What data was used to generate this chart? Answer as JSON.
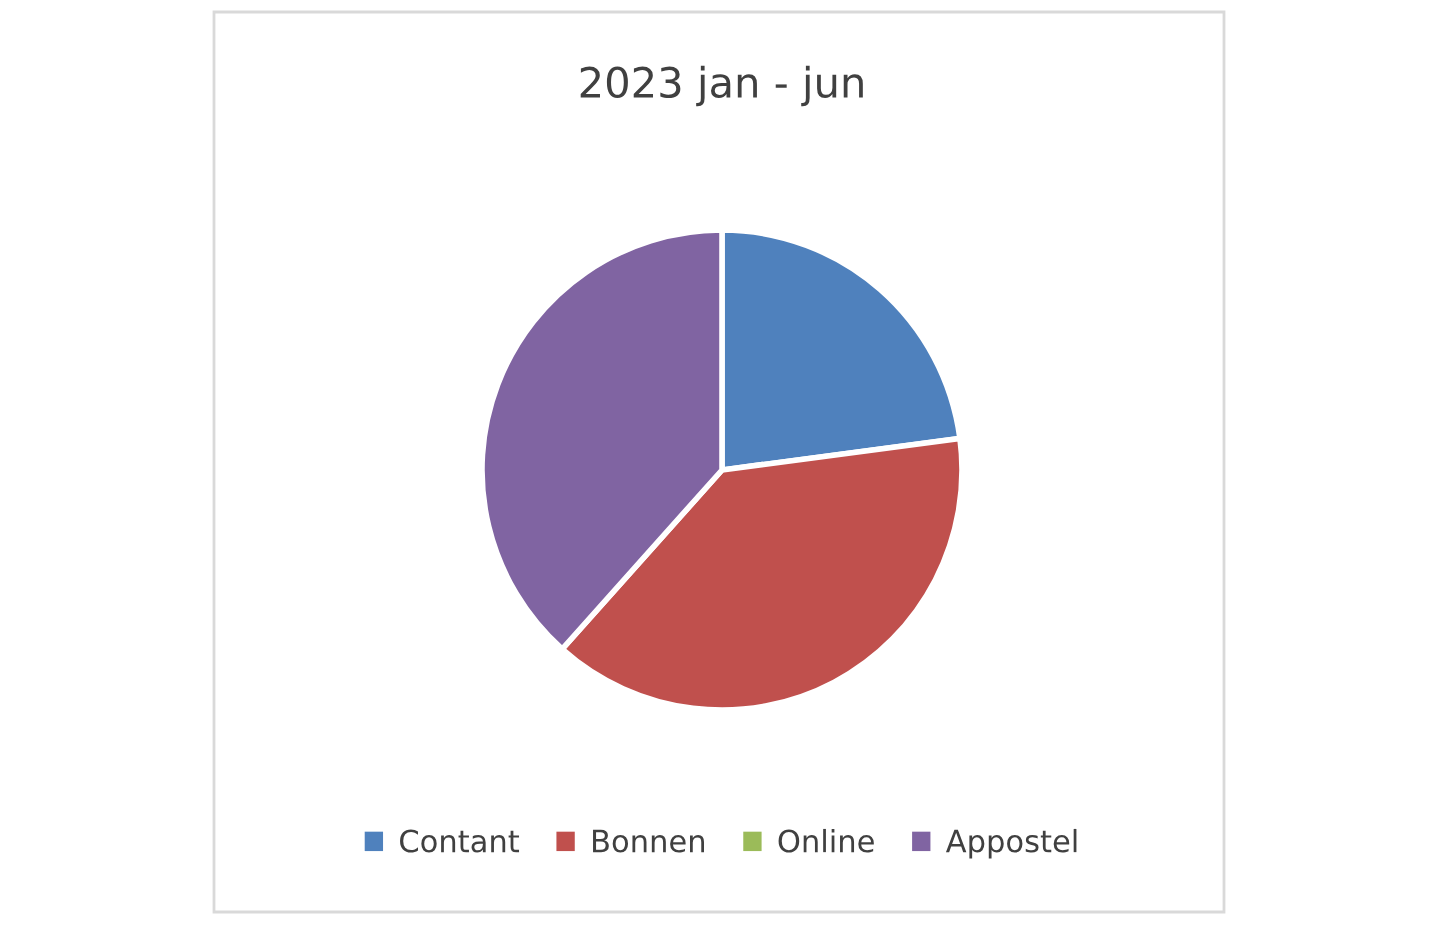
{
  "chart_data": {
    "type": "pie",
    "title": "2023 jan - jun",
    "categories": [
      "Contant",
      "Bonnen",
      "Online",
      "Appostel"
    ],
    "values": [
      22.9,
      38.7,
      0,
      38.4
    ],
    "colors": [
      "#4f81bd",
      "#c0504d",
      "#9bbb59",
      "#8064a2"
    ],
    "legend": "bottom"
  }
}
